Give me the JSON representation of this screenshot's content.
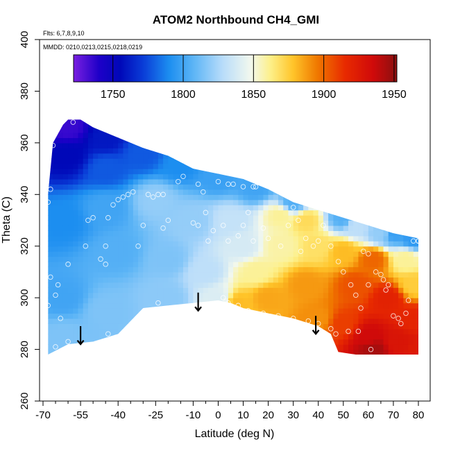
{
  "chart_data": {
    "type": "heatmap",
    "title": "ATOM2 Northbound CH4_GMI",
    "annotations": [
      "Flts: 6,7,8,9,10",
      "MMDD: 0210,0213,0215,0218,0219"
    ],
    "xlabel": "Latitude (deg N)",
    "ylabel": "Theta (C)",
    "xlim": [
      -70,
      80
    ],
    "ylim": [
      260,
      400
    ],
    "x_ticks": [
      -70,
      -55,
      -40,
      -25,
      -10,
      0,
      10,
      20,
      30,
      40,
      50,
      60,
      70,
      80
    ],
    "x_tick_labels": [
      "-70",
      "-55",
      "-40",
      "-25",
      "-10",
      "0",
      "10",
      "20",
      "30",
      "40",
      "50",
      "60",
      "70",
      "80"
    ],
    "x_minor_ticks": [
      -65,
      -60,
      -50,
      -45,
      -35,
      -30,
      -20,
      -15,
      -5,
      5,
      15,
      25,
      35,
      45,
      55,
      65,
      75
    ],
    "y_ticks": [
      260,
      280,
      300,
      320,
      340,
      360,
      380,
      400
    ],
    "y_tick_labels": [
      "260",
      "280",
      "300",
      "320",
      "340",
      "360",
      "380",
      "400"
    ],
    "colorbar": {
      "range": [
        1722,
        1952
      ],
      "ticks": [
        1750,
        1800,
        1850,
        1900,
        1950
      ],
      "tick_labels": [
        "1750",
        "1800",
        "1850",
        "1900",
        "1950"
      ],
      "stops": [
        {
          "value": 1722,
          "color": "#7a1fe0"
        },
        {
          "value": 1740,
          "color": "#1e00c8"
        },
        {
          "value": 1755,
          "color": "#0008b8"
        },
        {
          "value": 1772,
          "color": "#0a3ed8"
        },
        {
          "value": 1790,
          "color": "#1c8ef0"
        },
        {
          "value": 1808,
          "color": "#5fb6f6"
        },
        {
          "value": 1828,
          "color": "#b8dcfa"
        },
        {
          "value": 1848,
          "color": "#f2f8ee"
        },
        {
          "value": 1862,
          "color": "#fdf08a"
        },
        {
          "value": 1878,
          "color": "#ffc52a"
        },
        {
          "value": 1895,
          "color": "#f07a00"
        },
        {
          "value": 1915,
          "color": "#e82a00"
        },
        {
          "value": 1935,
          "color": "#d00a0a"
        },
        {
          "value": 1952,
          "color": "#8a1010"
        }
      ]
    },
    "field": {
      "lat_range": [
        -68,
        80
      ],
      "upper_boundary": [
        [
          -68,
          340
        ],
        [
          -66,
          360
        ],
        [
          -62,
          367
        ],
        [
          -60,
          369
        ],
        [
          -55,
          369
        ],
        [
          -50,
          366
        ],
        [
          -40,
          362
        ],
        [
          -30,
          358
        ],
        [
          -20,
          355
        ],
        [
          -10,
          350
        ],
        [
          0,
          348
        ],
        [
          10,
          346
        ],
        [
          20,
          342
        ],
        [
          30,
          337
        ],
        [
          40,
          334
        ],
        [
          50,
          331
        ],
        [
          60,
          328
        ],
        [
          70,
          325
        ],
        [
          80,
          323
        ]
      ],
      "lower_boundary": [
        [
          -68,
          278
        ],
        [
          -60,
          282
        ],
        [
          -50,
          283
        ],
        [
          -40,
          286
        ],
        [
          -30,
          296
        ],
        [
          -20,
          297
        ],
        [
          -10,
          298
        ],
        [
          0,
          299
        ],
        [
          5,
          298
        ],
        [
          10,
          296
        ],
        [
          20,
          294
        ],
        [
          30,
          292
        ],
        [
          40,
          289
        ],
        [
          45,
          286
        ],
        [
          48,
          279
        ],
        [
          55,
          278
        ],
        [
          65,
          278
        ],
        [
          80,
          278
        ]
      ],
      "control_points": [
        {
          "lat": -60,
          "theta": 366,
          "value": 1735
        },
        {
          "lat": -60,
          "theta": 355,
          "value": 1755
        },
        {
          "lat": -45,
          "theta": 362,
          "value": 1760
        },
        {
          "lat": -45,
          "theta": 350,
          "value": 1778
        },
        {
          "lat": -30,
          "theta": 356,
          "value": 1778
        },
        {
          "lat": -15,
          "theta": 352,
          "value": 1790
        },
        {
          "lat": 0,
          "theta": 347,
          "value": 1798
        },
        {
          "lat": 15,
          "theta": 343,
          "value": 1800
        },
        {
          "lat": 30,
          "theta": 337,
          "value": 1805
        },
        {
          "lat": 50,
          "theta": 331,
          "value": 1805
        },
        {
          "lat": 70,
          "theta": 325,
          "value": 1798
        },
        {
          "lat": 78,
          "theta": 323,
          "value": 1795
        },
        {
          "lat": -62,
          "theta": 330,
          "value": 1790
        },
        {
          "lat": -62,
          "theta": 300,
          "value": 1800
        },
        {
          "lat": -62,
          "theta": 285,
          "value": 1815
        },
        {
          "lat": -45,
          "theta": 335,
          "value": 1800
        },
        {
          "lat": -40,
          "theta": 318,
          "value": 1805
        },
        {
          "lat": -45,
          "theta": 295,
          "value": 1815
        },
        {
          "lat": -25,
          "theta": 338,
          "value": 1820
        },
        {
          "lat": -20,
          "theta": 315,
          "value": 1815
        },
        {
          "lat": -20,
          "theta": 300,
          "value": 1818
        },
        {
          "lat": -10,
          "theta": 330,
          "value": 1820
        },
        {
          "lat": -5,
          "theta": 310,
          "value": 1830
        },
        {
          "lat": 0,
          "theta": 300,
          "value": 1840
        },
        {
          "lat": 5,
          "theta": 330,
          "value": 1832
        },
        {
          "lat": 10,
          "theta": 320,
          "value": 1838
        },
        {
          "lat": 15,
          "theta": 310,
          "value": 1860
        },
        {
          "lat": 25,
          "theta": 332,
          "value": 1860
        },
        {
          "lat": 25,
          "theta": 320,
          "value": 1858
        },
        {
          "lat": 8,
          "theta": 298,
          "value": 1880
        },
        {
          "lat": 20,
          "theta": 300,
          "value": 1885
        },
        {
          "lat": 35,
          "theta": 330,
          "value": 1870
        },
        {
          "lat": 40,
          "theta": 320,
          "value": 1868
        },
        {
          "lat": 35,
          "theta": 305,
          "value": 1888
        },
        {
          "lat": 40,
          "theta": 292,
          "value": 1890
        },
        {
          "lat": 55,
          "theta": 328,
          "value": 1830
        },
        {
          "lat": 65,
          "theta": 325,
          "value": 1820
        },
        {
          "lat": 50,
          "theta": 318,
          "value": 1880
        },
        {
          "lat": 62,
          "theta": 315,
          "value": 1900
        },
        {
          "lat": 75,
          "theta": 315,
          "value": 1860
        },
        {
          "lat": 78,
          "theta": 305,
          "value": 1875
        },
        {
          "lat": 55,
          "theta": 305,
          "value": 1905
        },
        {
          "lat": 68,
          "theta": 300,
          "value": 1920
        },
        {
          "lat": 78,
          "theta": 292,
          "value": 1918
        },
        {
          "lat": 50,
          "theta": 290,
          "value": 1910
        },
        {
          "lat": 60,
          "theta": 285,
          "value": 1935
        },
        {
          "lat": 62,
          "theta": 280,
          "value": 1945
        },
        {
          "lat": 72,
          "theta": 283,
          "value": 1928
        },
        {
          "lat": 80,
          "theta": 280,
          "value": 1925
        }
      ]
    },
    "samples": [
      [
        -58,
        368
      ],
      [
        -66,
        359
      ],
      [
        -67,
        342
      ],
      [
        -68,
        337
      ],
      [
        -60,
        313
      ],
      [
        -67,
        308
      ],
      [
        -64,
        305
      ],
      [
        -65,
        301
      ],
      [
        -68,
        297
      ],
      [
        -63,
        292
      ],
      [
        -60,
        283
      ],
      [
        -65,
        281
      ],
      [
        -53,
        320
      ],
      [
        -52,
        330
      ],
      [
        -50,
        331
      ],
      [
        -47,
        315
      ],
      [
        -45,
        313
      ],
      [
        -45,
        320
      ],
      [
        -44,
        331
      ],
      [
        -42,
        336
      ],
      [
        -40,
        338
      ],
      [
        -38,
        339
      ],
      [
        -36,
        340
      ],
      [
        -34,
        341
      ],
      [
        -44,
        286
      ],
      [
        -28,
        340
      ],
      [
        -26,
        339
      ],
      [
        -24,
        340
      ],
      [
        -22,
        340
      ],
      [
        -30,
        328
      ],
      [
        -32,
        320
      ],
      [
        -22,
        327
      ],
      [
        -20,
        330
      ],
      [
        -24,
        298
      ],
      [
        -16,
        345
      ],
      [
        -14,
        347
      ],
      [
        -8,
        344
      ],
      [
        -6,
        341
      ],
      [
        -10,
        329
      ],
      [
        -5,
        333
      ],
      [
        0,
        345
      ],
      [
        4,
        344
      ],
      [
        6,
        344
      ],
      [
        10,
        343
      ],
      [
        -4,
        322
      ],
      [
        -8,
        328
      ],
      [
        -2,
        326
      ],
      [
        2,
        328
      ],
      [
        4,
        322
      ],
      [
        8,
        324
      ],
      [
        10,
        328
      ],
      [
        14,
        343
      ],
      [
        15,
        343
      ],
      [
        12,
        333
      ],
      [
        14,
        322
      ],
      [
        18,
        327
      ],
      [
        20,
        323
      ],
      [
        25,
        320
      ],
      [
        28,
        328
      ],
      [
        30,
        335
      ],
      [
        32,
        330
      ],
      [
        2,
        300
      ],
      [
        4,
        298
      ],
      [
        8,
        297
      ],
      [
        12,
        295
      ],
      [
        18,
        294
      ],
      [
        24,
        293
      ],
      [
        30,
        292
      ],
      [
        36,
        291
      ],
      [
        40,
        290
      ],
      [
        45,
        288
      ],
      [
        47,
        286
      ],
      [
        52,
        287
      ],
      [
        56,
        287
      ],
      [
        60,
        305
      ],
      [
        33,
        318
      ],
      [
        35,
        323
      ],
      [
        38,
        320
      ],
      [
        40,
        322
      ],
      [
        42,
        328
      ],
      [
        45,
        320
      ],
      [
        48,
        314
      ],
      [
        50,
        310
      ],
      [
        53,
        305
      ],
      [
        55,
        301
      ],
      [
        57,
        296
      ],
      [
        58,
        318
      ],
      [
        60,
        317
      ],
      [
        63,
        310
      ],
      [
        65,
        309
      ],
      [
        66,
        307
      ],
      [
        67,
        303
      ],
      [
        68,
        305
      ],
      [
        70,
        293
      ],
      [
        72,
        292
      ],
      [
        73,
        290
      ],
      [
        75,
        294
      ],
      [
        76,
        299
      ],
      [
        78,
        322
      ],
      [
        80,
        322
      ],
      [
        80,
        322
      ],
      [
        61,
        280
      ]
    ],
    "arrows": [
      {
        "lat": -55,
        "theta_from": 289,
        "theta_to": 282
      },
      {
        "lat": -8,
        "theta_from": 302,
        "theta_to": 295
      },
      {
        "lat": 39,
        "theta_from": 293,
        "theta_to": 286
      }
    ]
  }
}
